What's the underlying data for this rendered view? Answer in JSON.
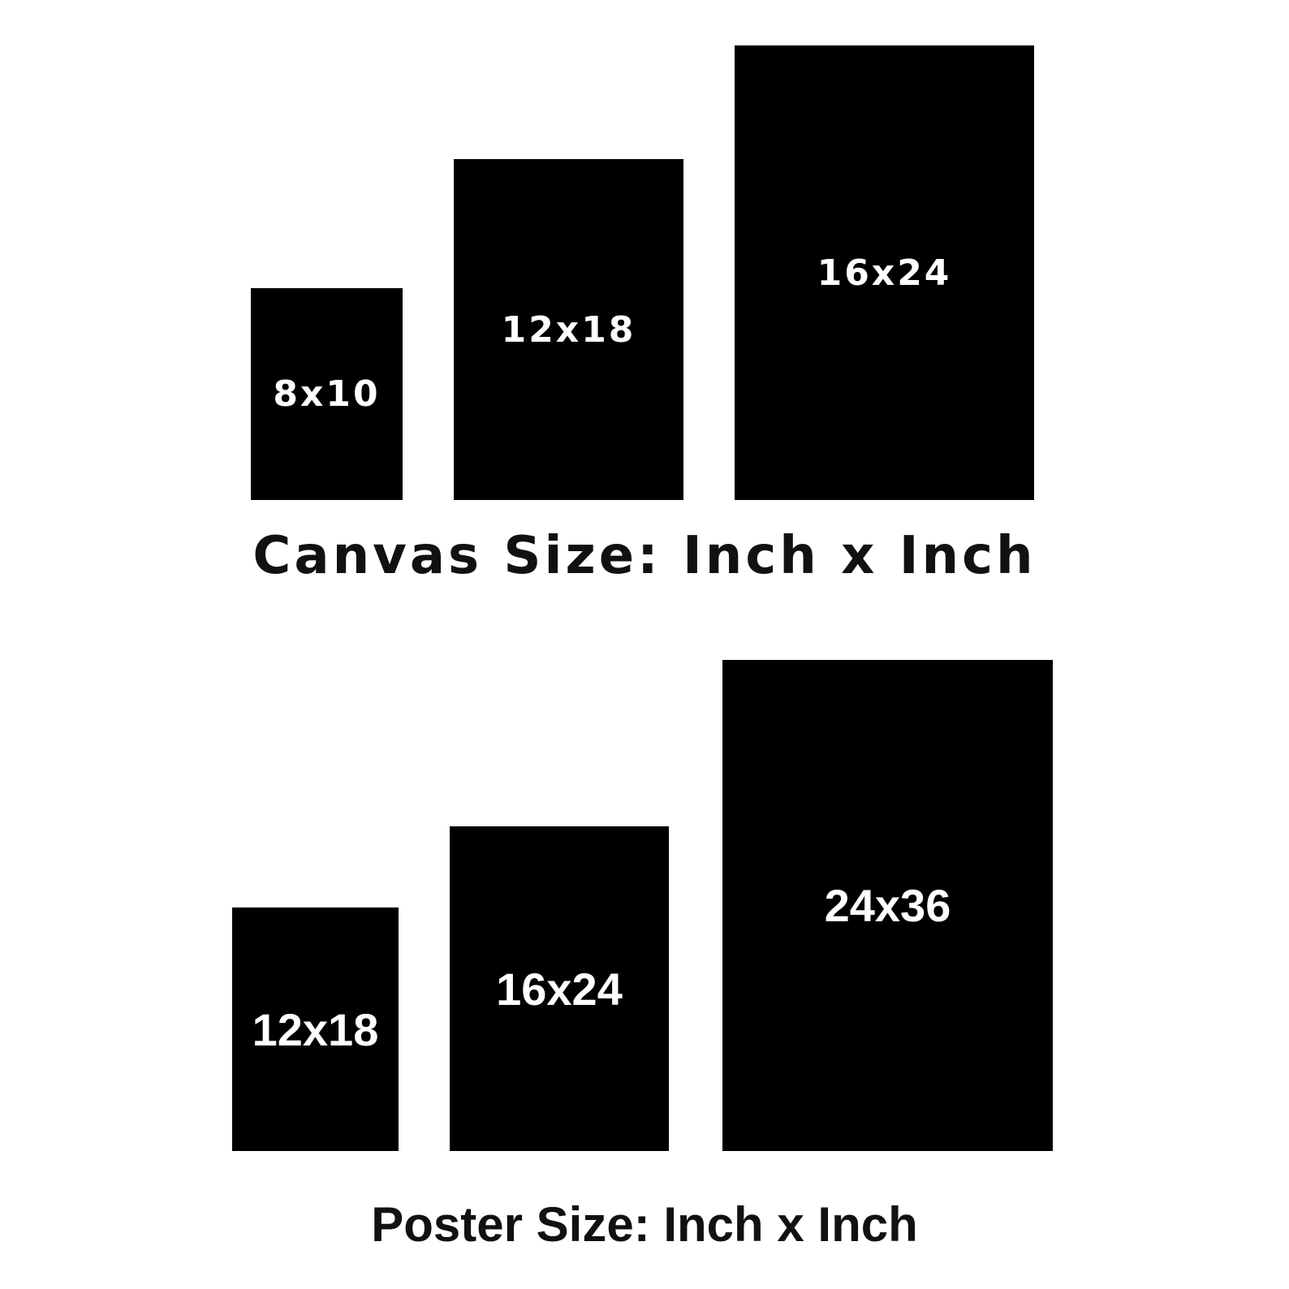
{
  "canvas": {
    "caption": "Canvas Size: Inch x Inch",
    "sizes": [
      "8x10",
      "12x18",
      "16x24"
    ]
  },
  "poster": {
    "caption": "Poster Size: Inch x Inch",
    "sizes": [
      "12x18",
      "16x24",
      "24x36"
    ]
  },
  "colors": {
    "box": "#000000",
    "box_text": "#ffffff",
    "caption_text": "#111111",
    "background": "#ffffff"
  }
}
